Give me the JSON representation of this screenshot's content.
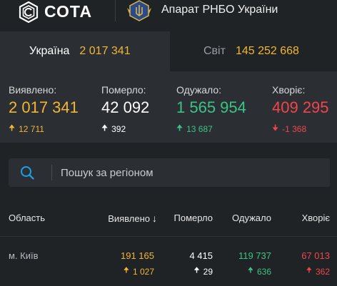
{
  "header": {
    "brand": "СОТА",
    "org": "Апарат РНБО України"
  },
  "tabs": [
    {
      "name": "Україна",
      "count": "2 017 341"
    },
    {
      "name": "Світ",
      "count": "145 252 668"
    }
  ],
  "stats": {
    "confirmed": {
      "label": "Виявлено:",
      "value": "2 017 341",
      "arrow": "🠉",
      "delta": "12 711"
    },
    "deaths": {
      "label": "Померло:",
      "value": "42 092",
      "arrow": "🠉",
      "delta": "392"
    },
    "recovered": {
      "label": "Одужало:",
      "value": "1 565 954",
      "arrow": "🠉",
      "delta": "13 687"
    },
    "sick": {
      "label": "Хворіє:",
      "value": "409 295",
      "arrow": "🠋",
      "delta": "-1 368"
    }
  },
  "search": {
    "placeholder": "Пошук за регіоном"
  },
  "table": {
    "headers": {
      "region": "Область",
      "confirmed": "Виявлено",
      "sort_arrow": "↓",
      "deaths": "Померло",
      "recovered": "Одужало",
      "sick": "Хворіє"
    },
    "rows": [
      {
        "region": "м. Київ",
        "confirmed": "191 165",
        "confirmed_arrow": "🠉",
        "confirmed_delta": "1 027",
        "deaths": "4 415",
        "deaths_arrow": "🠉",
        "deaths_delta": "29",
        "recovered": "119 737",
        "recovered_arrow": "🠉",
        "recovered_delta": "636",
        "sick": "67 013",
        "sick_arrow": "🠉",
        "sick_delta": "362"
      }
    ]
  },
  "colors": {
    "background": "#1f2326",
    "panel": "#2b2f33",
    "confirmed": "#f2b632",
    "deaths": "#ffffff",
    "recovered": "#3cc486",
    "sick": "#f0464a",
    "accent_icon": "#1da1e6"
  },
  "icons": {
    "brand": "cota-shield-logo-icon",
    "org": "rnbo-emblem-icon",
    "search": "search-icon"
  }
}
